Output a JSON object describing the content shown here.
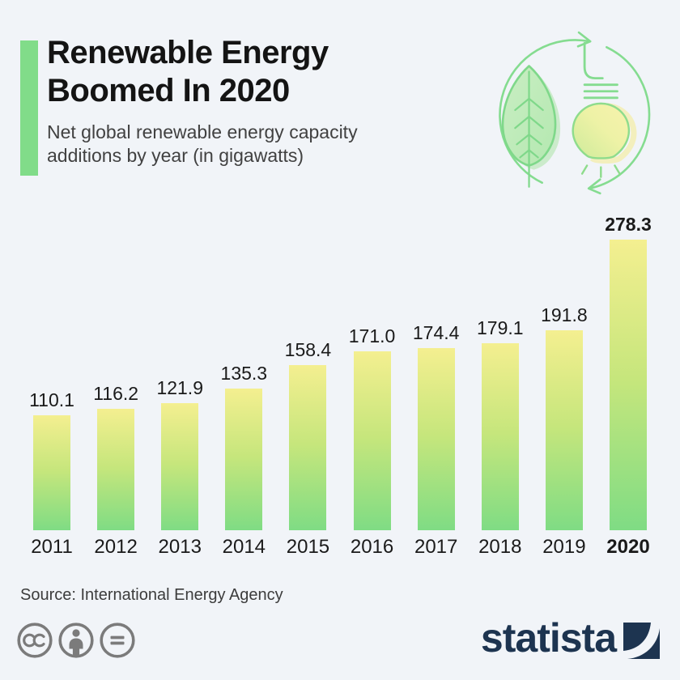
{
  "colors": {
    "background": "#f1f4f8",
    "accent_green": "#81dc89",
    "bar_gradient_top": "#f4ef90",
    "bar_gradient_bottom": "#7fdc84",
    "statista_navy": "#1d3450",
    "license_grey": "#7b7b7b",
    "icon_green": "#85dc90"
  },
  "header": {
    "title": "Renewable Energy Boomed In 2020",
    "subtitle": "Net global renewable energy capacity additions by year (in gigawatts)",
    "hero_icon": "leaf-lightbulb-recycle-icon"
  },
  "chart_data": {
    "type": "bar",
    "categories": [
      "2011",
      "2012",
      "2013",
      "2014",
      "2015",
      "2016",
      "2017",
      "2018",
      "2019",
      "2020"
    ],
    "values": [
      110.1,
      116.2,
      121.9,
      135.3,
      158.4,
      171.0,
      174.4,
      179.1,
      191.8,
      278.3
    ],
    "value_labels": [
      "110.1",
      "116.2",
      "121.9",
      "135.3",
      "158.4",
      "171.0",
      "174.4",
      "179.1",
      "191.8",
      "278.3"
    ],
    "title": "Net global renewable energy capacity additions by year (in gigawatts)",
    "xlabel": "",
    "ylabel": "Gigawatts",
    "ylim": [
      0,
      290
    ],
    "grid": false,
    "legend": false,
    "highlighted_category": "2020",
    "bar_gradient": [
      "#f4ef90",
      "#c6e67c",
      "#7fdc84"
    ],
    "value_labels_position": "above-bars"
  },
  "footer": {
    "source": "Source: International Energy Agency",
    "license_icons": [
      "cc-icon",
      "attribution-icon",
      "equal-icon"
    ],
    "brand": "statista"
  }
}
